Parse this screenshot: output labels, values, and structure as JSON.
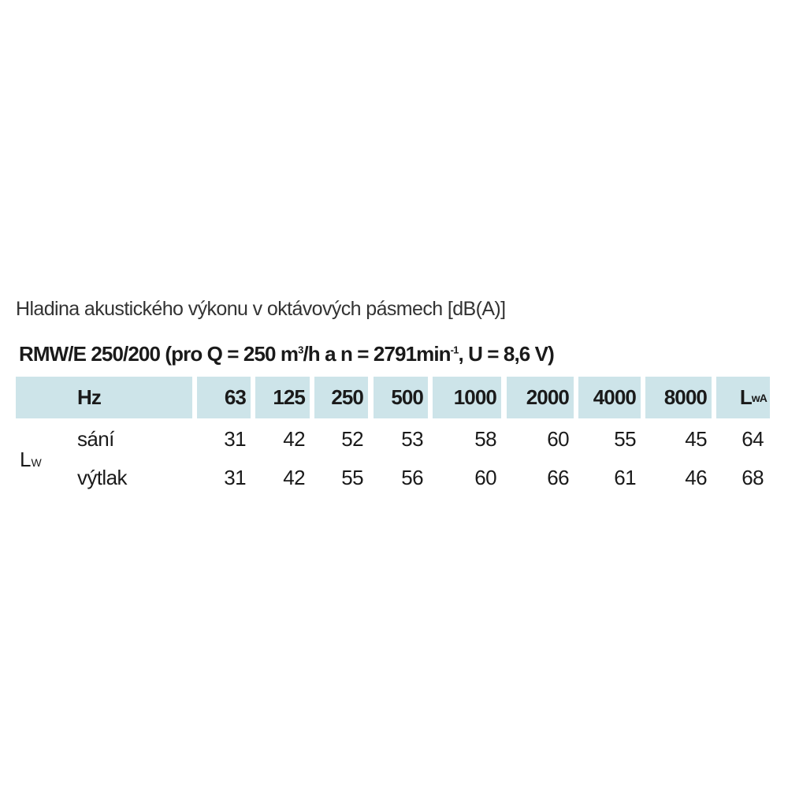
{
  "title": "Hladina akustického výkonu v oktávových pásmech [dB(A)]",
  "subtitle": {
    "prefix": "RMW/E 250/200 (pro Q = 250 m",
    "sup1": "3",
    "mid": "/h a n = 2791min",
    "sup2": "-1",
    "suffix": ", U = 8,6 V)"
  },
  "table": {
    "header_first": "Hz",
    "frequencies": [
      "63",
      "125",
      "250",
      "500",
      "1000",
      "2000",
      "4000",
      "8000"
    ],
    "total_label": {
      "main": "L",
      "sub": "wA"
    },
    "group_label": {
      "main": "L",
      "sub": "W"
    },
    "header_color": "#cde4e9",
    "rows": [
      {
        "label": "sání",
        "values": [
          "31",
          "42",
          "52",
          "53",
          "58",
          "60",
          "55",
          "45"
        ],
        "total": "64"
      },
      {
        "label": "výtlak",
        "values": [
          "31",
          "42",
          "55",
          "56",
          "60",
          "66",
          "61",
          "46"
        ],
        "total": "68"
      }
    ]
  }
}
